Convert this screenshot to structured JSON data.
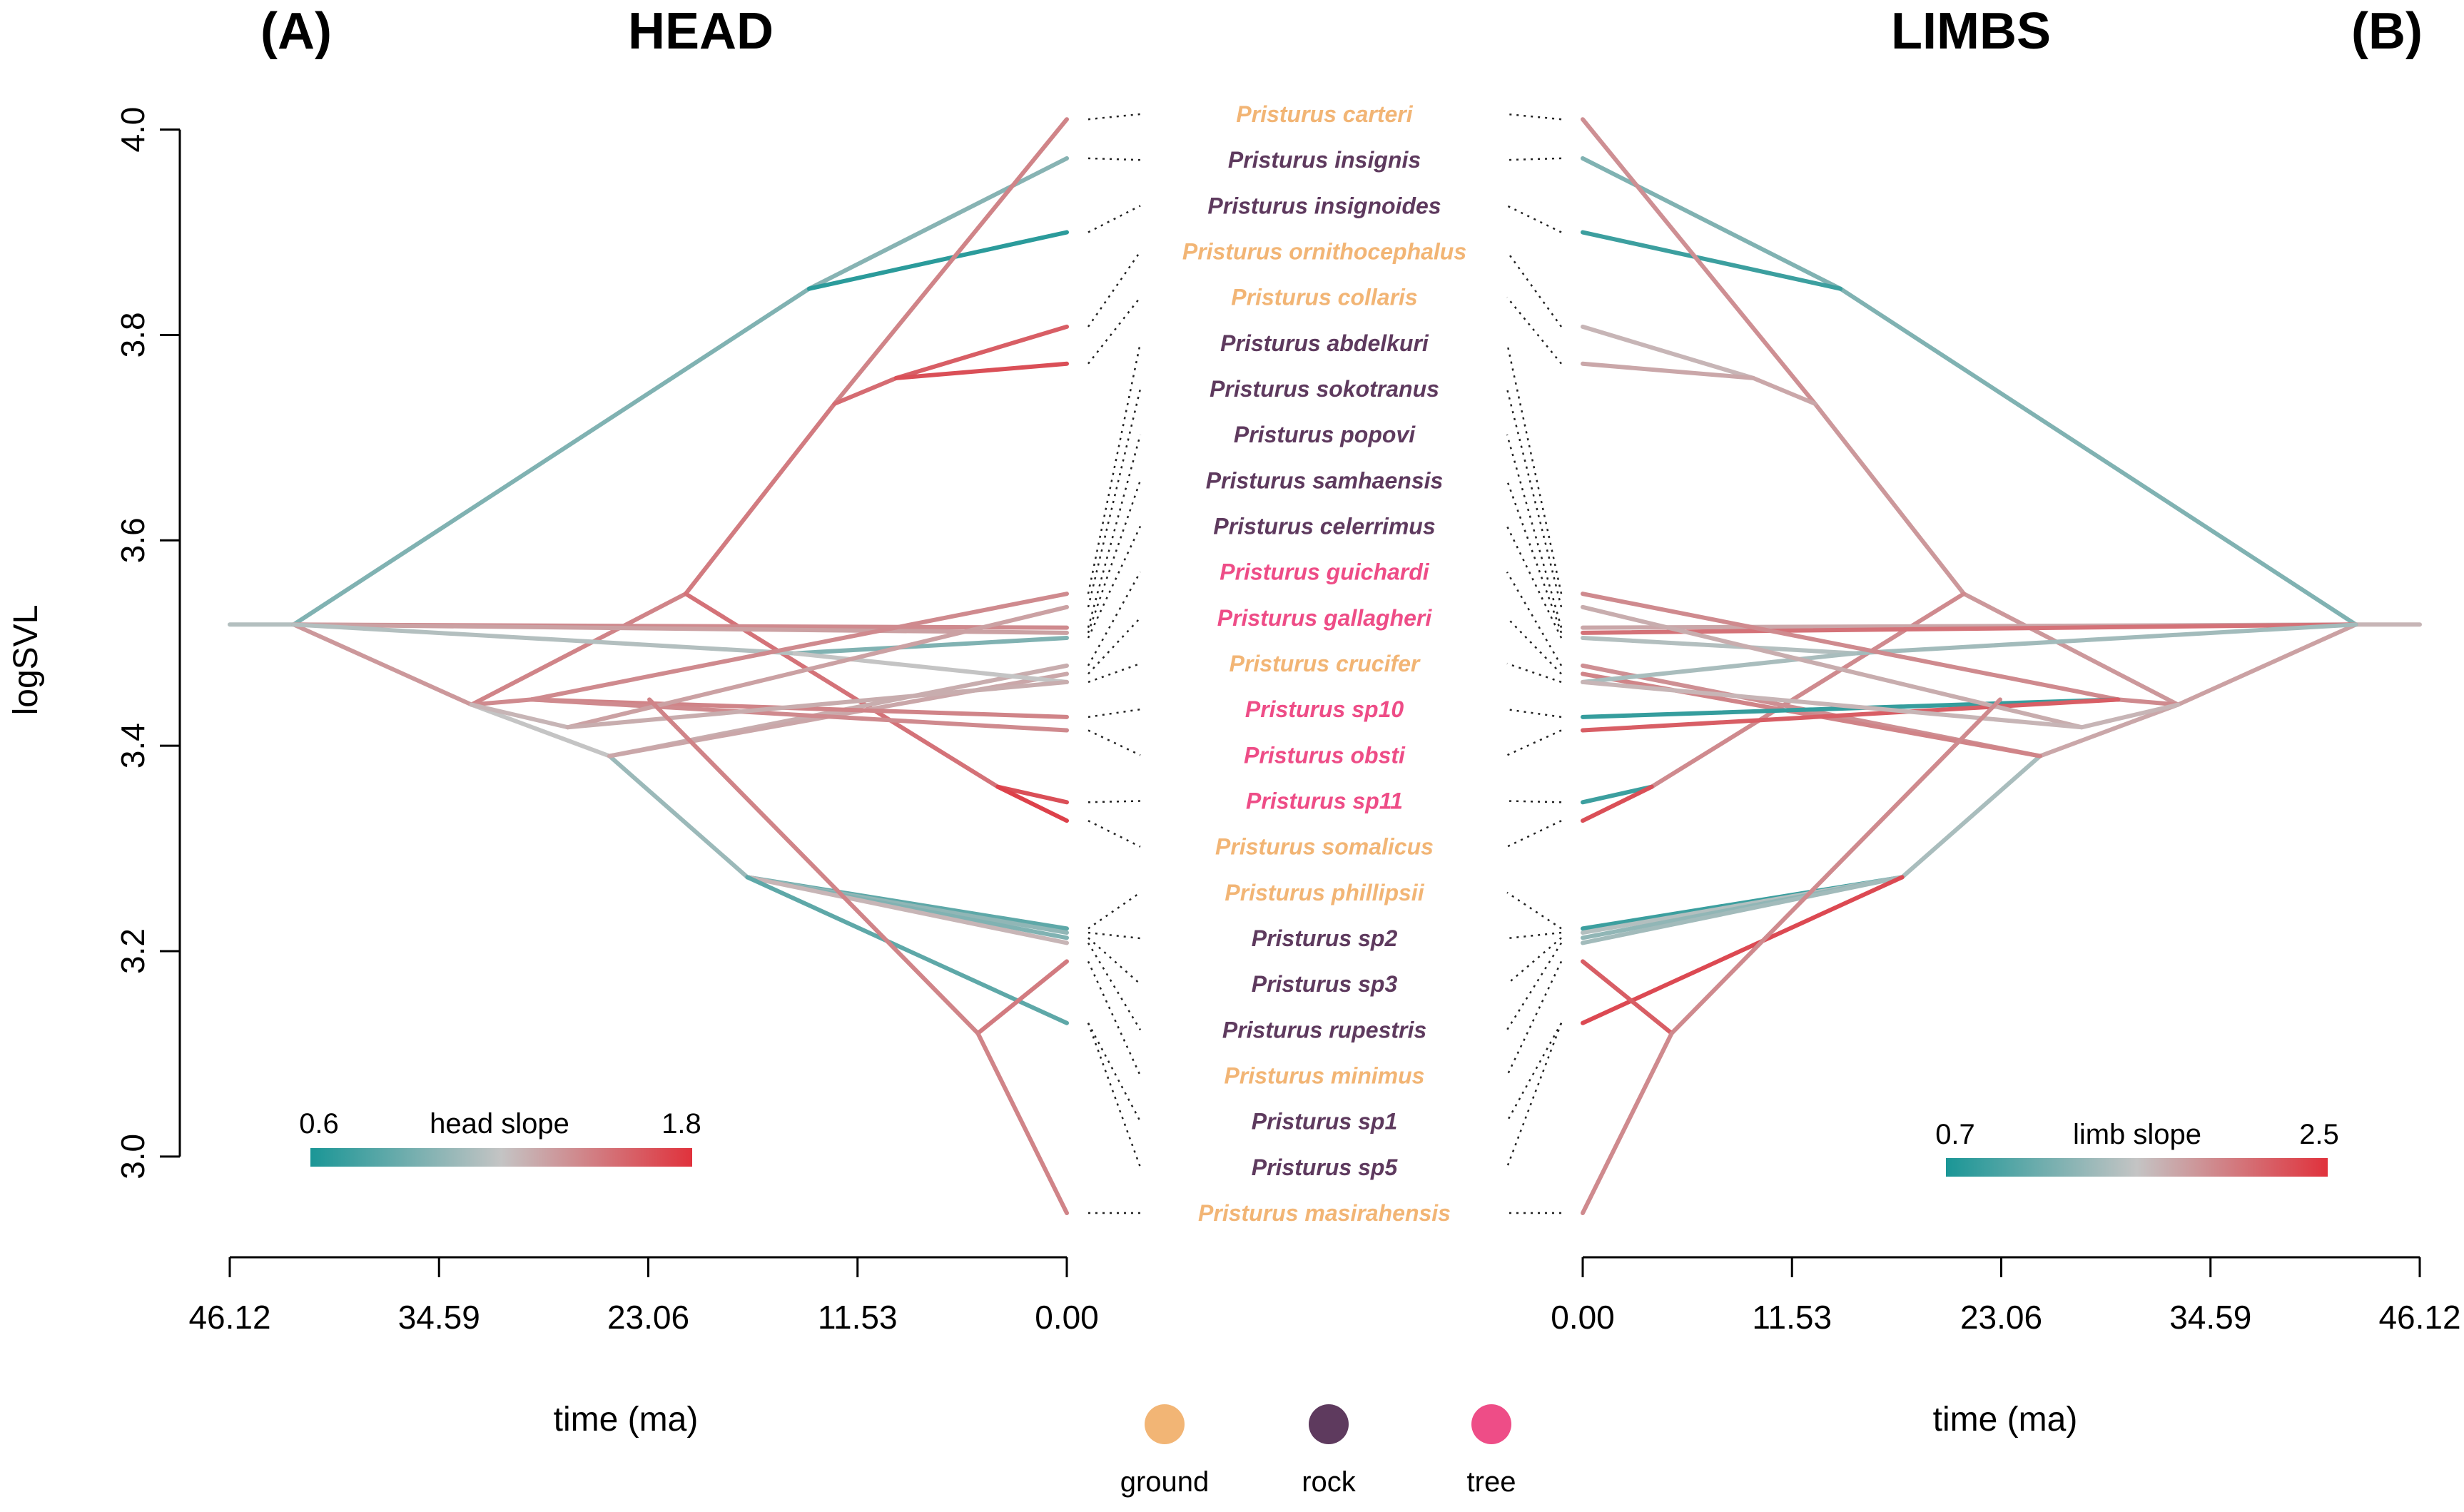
{
  "panels": {
    "left": {
      "letter": "(A)",
      "title": "HEAD"
    },
    "right": {
      "letter": "(B)",
      "title": "LIMBS"
    }
  },
  "colors": {
    "slope_low": "#1a9696",
    "slope_mid": "#c4c4c4",
    "slope_high": "#e0323c",
    "ground": "#f2b575",
    "rock": "#5e3a5e",
    "tree": "#ee4d87"
  },
  "colorbars": {
    "left": {
      "title": "head slope",
      "min": "0.6",
      "max": "1.8"
    },
    "right": {
      "title": "limb slope",
      "min": "0.7",
      "max": "2.5"
    }
  },
  "legend": {
    "items": [
      {
        "label": "ground",
        "habitat": "ground"
      },
      {
        "label": "rock",
        "habitat": "rock"
      },
      {
        "label": "tree",
        "habitat": "tree"
      }
    ]
  },
  "chart_data": {
    "type": "line",
    "subtype": "phenogram (mirrored)",
    "ylabel": "logSVL",
    "xlabel": "time (ma)",
    "ylim": [
      2.945,
      4.015
    ],
    "yticks": [
      "3.0",
      "3.2",
      "3.4",
      "3.6",
      "3.8",
      "4.0"
    ],
    "xlim": [
      0,
      46.12
    ],
    "xticks": [
      "46.12",
      "34.59",
      "23.06",
      "11.53",
      "0.00"
    ],
    "x_reversed_left_panel": true,
    "species": [
      {
        "name": "Pristurus carteri",
        "habitat": "ground",
        "logSVL": 4.01
      },
      {
        "name": "Pristurus insignis",
        "habitat": "rock",
        "logSVL": 3.972
      },
      {
        "name": "Pristurus insignoides",
        "habitat": "rock",
        "logSVL": 3.9
      },
      {
        "name": "Pristurus ornithocephalus",
        "habitat": "ground",
        "logSVL": 3.808
      },
      {
        "name": "Pristurus collaris",
        "habitat": "ground",
        "logSVL": 3.772
      },
      {
        "name": "Pristurus abdelkuri",
        "habitat": "rock",
        "logSVL": 3.548
      },
      {
        "name": "Pristurus sokotranus",
        "habitat": "rock",
        "logSVL": 3.535
      },
      {
        "name": "Pristurus popovi",
        "habitat": "rock",
        "logSVL": 3.515
      },
      {
        "name": "Pristurus samhaensis",
        "habitat": "rock",
        "logSVL": 3.51
      },
      {
        "name": "Pristurus celerrimus",
        "habitat": "rock",
        "logSVL": 3.505
      },
      {
        "name": "Pristurus guichardi",
        "habitat": "tree",
        "logSVL": 3.478
      },
      {
        "name": "Pristurus gallagheri",
        "habitat": "tree",
        "logSVL": 3.47
      },
      {
        "name": "Pristurus crucifer",
        "habitat": "ground",
        "logSVL": 3.462
      },
      {
        "name": "Pristurus sp10",
        "habitat": "tree",
        "logSVL": 3.428
      },
      {
        "name": "Pristurus obsti",
        "habitat": "tree",
        "logSVL": 3.415
      },
      {
        "name": "Pristurus sp11",
        "habitat": "tree",
        "logSVL": 3.345
      },
      {
        "name": "Pristurus somalicus",
        "habitat": "ground",
        "logSVL": 3.327
      },
      {
        "name": "Pristurus phillipsii",
        "habitat": "ground",
        "logSVL": 3.222
      },
      {
        "name": "Pristurus sp2",
        "habitat": "rock",
        "logSVL": 3.218
      },
      {
        "name": "Pristurus sp3",
        "habitat": "rock",
        "logSVL": 3.213
      },
      {
        "name": "Pristurus rupestris",
        "habitat": "rock",
        "logSVL": 3.208
      },
      {
        "name": "Pristurus minimus",
        "habitat": "ground",
        "logSVL": 3.19
      },
      {
        "name": "Pristurus sp1",
        "habitat": "rock",
        "logSVL": 3.13
      },
      {
        "name": "Pristurus sp5",
        "habitat": "rock",
        "logSVL": 3.13
      },
      {
        "name": "Pristurus masirahensis",
        "habitat": "ground",
        "logSVL": 2.945
      }
    ],
    "edges": [
      {
        "x": [
          46.12,
          42.6
        ],
        "y": [
          3.518,
          3.518
        ],
        "head": 0.45,
        "limb": 0.55
      },
      {
        "x": [
          42.6,
          14.2
        ],
        "y": [
          3.518,
          3.845
        ],
        "head": 0.3,
        "limb": 0.3
      },
      {
        "x": [
          14.2,
          0
        ],
        "y": [
          3.845,
          3.972
        ],
        "head": 0.32,
        "limb": 0.3
      },
      {
        "x": [
          14.2,
          0
        ],
        "y": [
          3.845,
          3.9
        ],
        "head": 0.05,
        "limb": 0.1
      },
      {
        "x": [
          42.6,
          32.8
        ],
        "y": [
          3.518,
          3.44
        ],
        "head": 0.65,
        "limb": 0.62
      },
      {
        "x": [
          32.8,
          21.0
        ],
        "y": [
          3.44,
          3.548
        ],
        "head": 0.72,
        "limb": 0.65
      },
      {
        "x": [
          21.0,
          12.8
        ],
        "y": [
          3.548,
          3.733
        ],
        "head": 0.75,
        "limb": 0.65
      },
      {
        "x": [
          12.8,
          0
        ],
        "y": [
          3.733,
          4.01
        ],
        "head": 0.72,
        "limb": 0.68
      },
      {
        "x": [
          12.8,
          9.4
        ],
        "y": [
          3.733,
          3.758
        ],
        "head": 0.8,
        "limb": 0.6
      },
      {
        "x": [
          9.4,
          0
        ],
        "y": [
          3.758,
          3.808
        ],
        "head": 0.85,
        "limb": 0.55
      },
      {
        "x": [
          9.4,
          0
        ],
        "y": [
          3.758,
          3.772
        ],
        "head": 0.9,
        "limb": 0.6
      },
      {
        "x": [
          21.0,
          3.8
        ],
        "y": [
          3.548,
          3.36
        ],
        "head": 0.78,
        "limb": 0.7
      },
      {
        "x": [
          3.8,
          0
        ],
        "y": [
          3.36,
          3.345
        ],
        "head": 0.9,
        "limb": 0.1
      },
      {
        "x": [
          3.8,
          0
        ],
        "y": [
          3.36,
          3.327
        ],
        "head": 0.95,
        "limb": 0.9
      },
      {
        "x": [
          32.8,
          25.2
        ],
        "y": [
          3.44,
          3.39
        ],
        "head": 0.5,
        "limb": 0.6
      },
      {
        "x": [
          25.2,
          17.6
        ],
        "y": [
          3.39,
          3.272
        ],
        "head": 0.38,
        "limb": 0.42
      },
      {
        "x": [
          17.6,
          0
        ],
        "y": [
          3.272,
          3.222
        ],
        "head": 0.2,
        "limb": 0.1
      },
      {
        "x": [
          17.6,
          0
        ],
        "y": [
          3.272,
          3.218
        ],
        "head": 0.35,
        "limb": 0.45
      },
      {
        "x": [
          17.6,
          0
        ],
        "y": [
          3.272,
          3.213
        ],
        "head": 0.3,
        "limb": 0.35
      },
      {
        "x": [
          17.6,
          0
        ],
        "y": [
          3.272,
          3.208
        ],
        "head": 0.55,
        "limb": 0.4
      },
      {
        "x": [
          17.6,
          0
        ],
        "y": [
          3.272,
          3.13
        ],
        "head": 0.2,
        "limb": 0.92
      },
      {
        "x": [
          25.2,
          0
        ],
        "y": [
          3.39,
          3.478
        ],
        "head": 0.58,
        "limb": 0.68
      },
      {
        "x": [
          25.2,
          0
        ],
        "y": [
          3.39,
          3.47
        ],
        "head": 0.6,
        "limb": 0.72
      },
      {
        "x": [
          42.6,
          0
        ],
        "y": [
          3.518,
          3.515
        ],
        "head": 0.7,
        "limb": 0.6
      },
      {
        "x": [
          42.6,
          0
        ],
        "y": [
          3.518,
          3.51
        ],
        "head": 0.62,
        "limb": 0.78
      },
      {
        "x": [
          42.6,
          15.0
        ],
        "y": [
          3.518,
          3.49
        ],
        "head": 0.45,
        "limb": 0.4
      },
      {
        "x": [
          15.0,
          0
        ],
        "y": [
          3.49,
          3.505
        ],
        "head": 0.3,
        "limb": 0.45
      },
      {
        "x": [
          15.0,
          0
        ],
        "y": [
          3.49,
          3.462
        ],
        "head": 0.5,
        "limb": 0.42
      },
      {
        "x": [
          32.8,
          29.5
        ],
        "y": [
          3.44,
          3.445
        ],
        "head": 0.7,
        "limb": 0.7
      },
      {
        "x": [
          29.5,
          0
        ],
        "y": [
          3.445,
          3.548
        ],
        "head": 0.7,
        "limb": 0.7
      },
      {
        "x": [
          29.5,
          0
        ],
        "y": [
          3.445,
          3.428
        ],
        "head": 0.72,
        "limb": 0.08
      },
      {
        "x": [
          29.5,
          0
        ],
        "y": [
          3.445,
          3.415
        ],
        "head": 0.7,
        "limb": 0.85
      },
      {
        "x": [
          32.8,
          27.5
        ],
        "y": [
          3.44,
          3.418
        ],
        "head": 0.55,
        "limb": 0.55
      },
      {
        "x": [
          27.5,
          0
        ],
        "y": [
          3.418,
          3.535
        ],
        "head": 0.62,
        "limb": 0.58
      },
      {
        "x": [
          27.5,
          0
        ],
        "y": [
          3.418,
          3.462
        ],
        "head": 0.58,
        "limb": 0.55
      },
      {
        "x": [
          23.0,
          4.9
        ],
        "y": [
          3.445,
          3.12
        ],
        "head": 0.72,
        "limb": 0.7
      },
      {
        "x": [
          4.9,
          0
        ],
        "y": [
          3.12,
          3.19
        ],
        "head": 0.75,
        "limb": 0.85
      },
      {
        "x": [
          4.9,
          0
        ],
        "y": [
          3.12,
          2.945
        ],
        "head": 0.72,
        "limb": 0.7
      }
    ]
  }
}
